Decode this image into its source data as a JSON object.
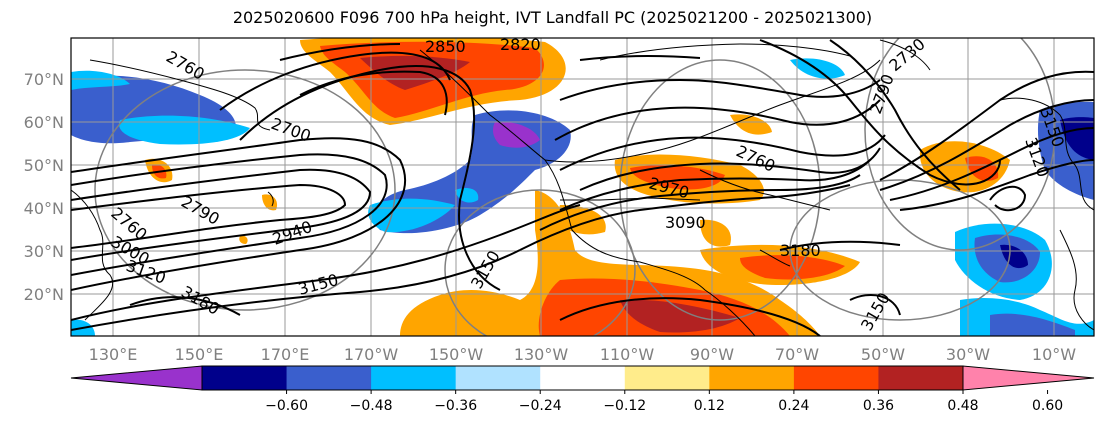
{
  "title": "2025020600 F096 700 hPa height, IVT Landfall PC (2025021200 - 2025021300)",
  "lat_labels": [
    "70°N",
    "60°N",
    "50°N",
    "40°N",
    "30°N",
    "20°N"
  ],
  "lon_labels": [
    "130°E",
    "150°E",
    "170°E",
    "170°W",
    "150°W",
    "130°W",
    "110°W",
    "90°W",
    "70°W",
    "50°W",
    "30°W",
    "10°W"
  ],
  "colorbar": {
    "ticks": [
      "−0.60",
      "−0.48",
      "−0.36",
      "−0.24",
      "−0.12",
      "0.12",
      "0.24",
      "0.36",
      "0.48",
      "0.60"
    ],
    "colors": [
      "#9932cc",
      "#00008b",
      "#3a5fcd",
      "#00bfff",
      "#b0e2ff",
      "#ffffff",
      "#ffec8b",
      "#ffa500",
      "#ff4500",
      "#b22222",
      "#ff82ab"
    ]
  },
  "contour_labels": [
    "2760",
    "2850",
    "2820",
    "2700",
    "2730",
    "2790",
    "2760",
    "2970",
    "3090",
    "3180",
    "3150",
    "3120",
    "3180",
    "3000",
    "2940",
    "2790",
    "3150",
    "3150",
    "2760",
    "3120",
    "3150"
  ]
}
